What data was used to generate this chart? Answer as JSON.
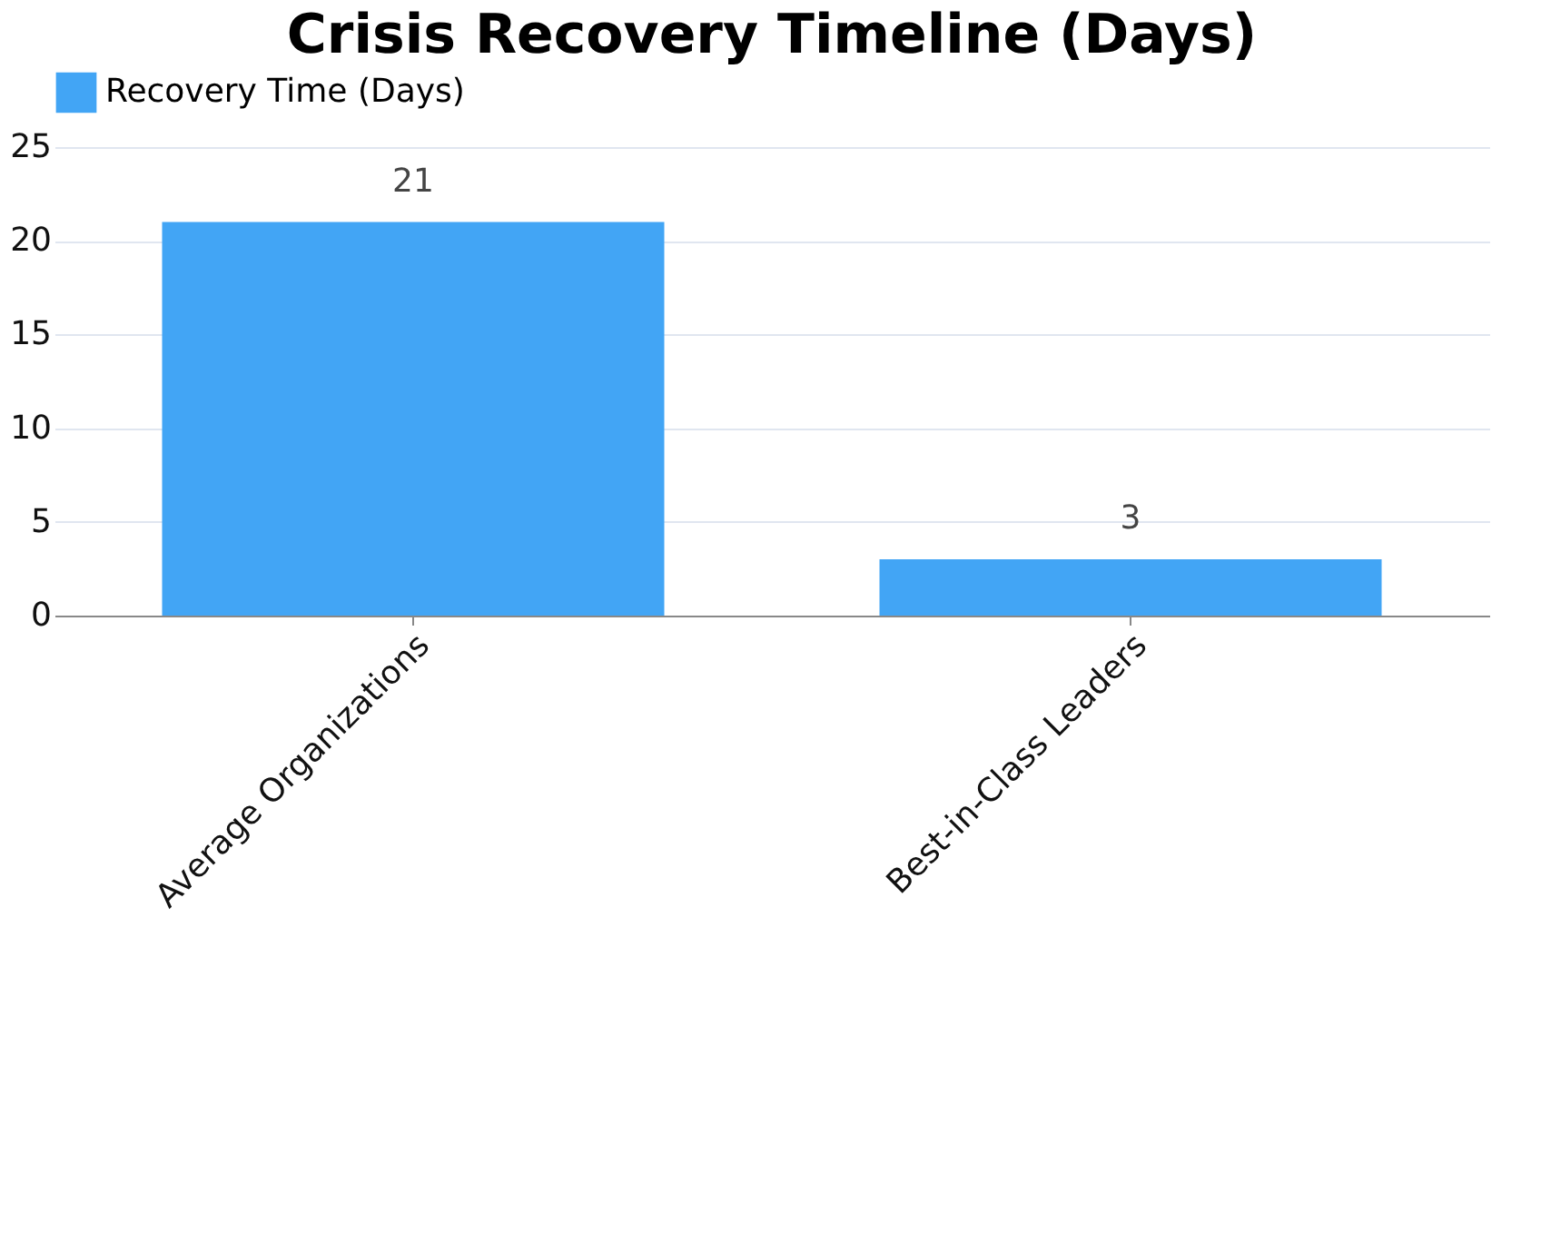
{
  "chart_data": {
    "type": "bar",
    "title": "Crisis Recovery Timeline (Days)",
    "categories": [
      "Average Organizations",
      "Best-in-Class Leaders"
    ],
    "series": [
      {
        "name": "Recovery Time (Days)",
        "color": "#42a5f5",
        "values": [
          21,
          3
        ]
      }
    ],
    "ylim": [
      0,
      25
    ],
    "yticks": [
      0,
      5,
      10,
      15,
      20,
      25
    ],
    "grid": "y",
    "legend": "top",
    "data_labels": true
  }
}
